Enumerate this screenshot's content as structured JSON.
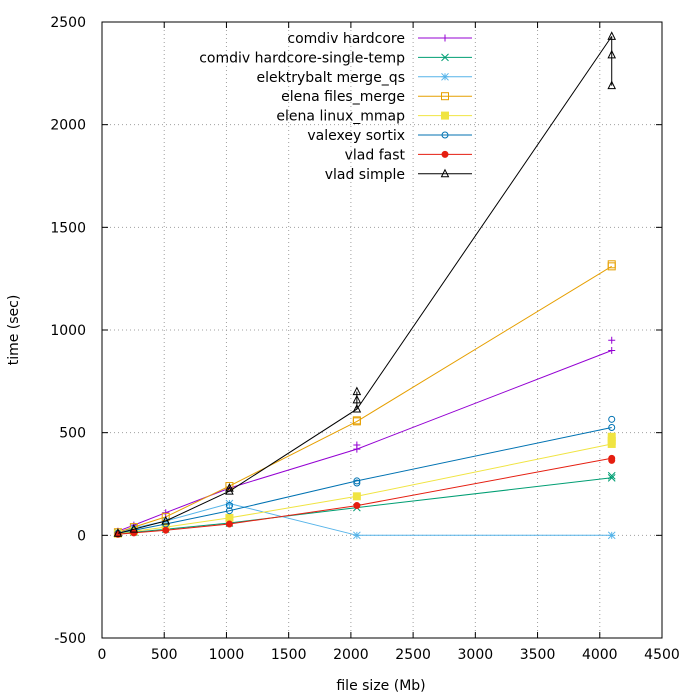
{
  "chart_data": {
    "type": "line",
    "title": "",
    "xlabel": "file size (Mb)",
    "ylabel": "time (sec)",
    "xlim": [
      0,
      4500
    ],
    "ylim": [
      -500,
      2500
    ],
    "xticks": [
      0,
      500,
      1000,
      1500,
      2000,
      2500,
      3000,
      3500,
      4000,
      4500
    ],
    "yticks": [
      -500,
      0,
      500,
      1000,
      1500,
      2000,
      2500
    ],
    "grid": true,
    "legend_position": "top-right",
    "series": [
      {
        "name": "comdiv hardcore",
        "color": "#9400d3",
        "marker": "plus",
        "points": [
          [
            128,
            20
          ],
          [
            256,
            50
          ],
          [
            512,
            110
          ],
          [
            1024,
            230
          ],
          [
            2048,
            420
          ],
          [
            4096,
            900
          ]
        ],
        "extra_points": [
          [
            2048,
            440
          ],
          [
            4096,
            950
          ]
        ]
      },
      {
        "name": "comdiv hardcore-single-temp",
        "color": "#009e73",
        "marker": "cross",
        "points": [
          [
            128,
            8
          ],
          [
            256,
            15
          ],
          [
            512,
            30
          ],
          [
            1024,
            60
          ],
          [
            2048,
            135
          ],
          [
            4096,
            280
          ]
        ],
        "extra_points": [
          [
            4096,
            290
          ]
        ]
      },
      {
        "name": "elektrybalt merge_qs",
        "color": "#56b4e9",
        "marker": "star",
        "points": [
          [
            128,
            15
          ],
          [
            256,
            35
          ],
          [
            512,
            70
          ],
          [
            1024,
            155
          ],
          [
            2048,
            0
          ],
          [
            4096,
            0
          ]
        ],
        "extra_points": []
      },
      {
        "name": "elena files_merge",
        "color": "#e69f00",
        "marker": "square",
        "points": [
          [
            128,
            15
          ],
          [
            256,
            40
          ],
          [
            512,
            90
          ],
          [
            1024,
            240
          ],
          [
            2048,
            555
          ],
          [
            4096,
            1310
          ]
        ],
        "extra_points": [
          [
            4096,
            1320
          ],
          [
            2048,
            560
          ]
        ]
      },
      {
        "name": "elena linux_mmap",
        "color": "#f0e442",
        "marker": "filled-square",
        "points": [
          [
            128,
            8
          ],
          [
            256,
            20
          ],
          [
            512,
            40
          ],
          [
            1024,
            85
          ],
          [
            2048,
            190
          ],
          [
            4096,
            445
          ]
        ],
        "extra_points": [
          [
            4096,
            480
          ],
          [
            4096,
            460
          ]
        ]
      },
      {
        "name": "valexey sortix",
        "color": "#0072b2",
        "marker": "circle",
        "points": [
          [
            128,
            10
          ],
          [
            256,
            25
          ],
          [
            512,
            55
          ],
          [
            1024,
            120
          ],
          [
            2048,
            265
          ],
          [
            4096,
            525
          ]
        ],
        "extra_points": [
          [
            4096,
            565
          ],
          [
            1024,
            145
          ],
          [
            2048,
            255
          ]
        ]
      },
      {
        "name": "vlad fast",
        "color": "#e51e10",
        "marker": "filled-circle",
        "points": [
          [
            128,
            5
          ],
          [
            256,
            12
          ],
          [
            512,
            25
          ],
          [
            1024,
            55
          ],
          [
            2048,
            145
          ],
          [
            4096,
            375
          ]
        ],
        "extra_points": [
          [
            4096,
            365
          ]
        ]
      },
      {
        "name": "vlad simple",
        "color": "#000000",
        "marker": "triangle",
        "points": [
          [
            128,
            10
          ],
          [
            256,
            30
          ],
          [
            512,
            70
          ],
          [
            1024,
            215
          ],
          [
            2048,
            615
          ],
          [
            4096,
            2430
          ]
        ],
        "extra_points": [
          [
            2048,
            700
          ],
          [
            2048,
            660
          ],
          [
            4096,
            2340
          ],
          [
            4096,
            2190
          ],
          [
            1024,
            230
          ]
        ],
        "error_bars": [
          [
            2048,
            615,
            700
          ],
          [
            4096,
            2190,
            2430
          ]
        ]
      }
    ]
  }
}
